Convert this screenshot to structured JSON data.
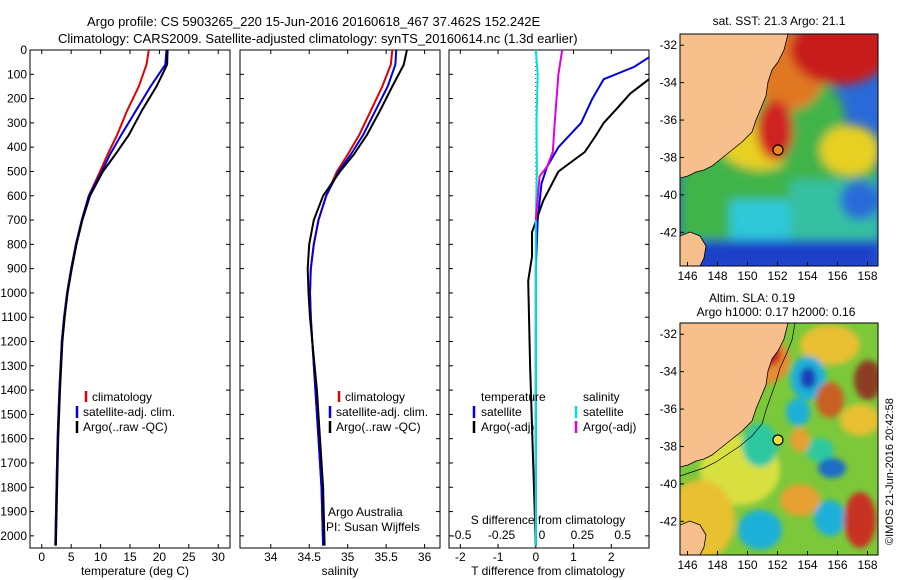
{
  "header": {
    "line1": "Argo profile: CS 5903265_220 15-Jun-2016 20160618_467 37.462S 152.242E",
    "line2": "Climatology: CARS2009. Satellite-adjusted climatology: synTS_20160614.nc (1.3d earlier)"
  },
  "chart_data": [
    {
      "type": "line",
      "xlabel": "temperature (deg C)",
      "ylabel": "",
      "xlim": [
        -2,
        32
      ],
      "ylim": [
        2050,
        0
      ],
      "xticks": [
        "0",
        "5",
        "10",
        "15",
        "20",
        "25",
        "30"
      ],
      "yticks": [
        "0",
        "100",
        "200",
        "300",
        "400",
        "500",
        "600",
        "700",
        "800",
        "900",
        "1000",
        "1100",
        "1200",
        "1300",
        "1400",
        "1500",
        "1600",
        "1700",
        "1800",
        "1900",
        "2000"
      ],
      "legend": [
        "climatology",
        "satellite-adj. clim.",
        "Argo(..raw -QC)"
      ],
      "series": [
        {
          "name": "climatology",
          "color": "#e00000",
          "x": [
            18.2,
            17.8,
            16.5,
            14.5,
            12.8,
            11.2,
            9.9,
            8.0,
            6.8,
            5.8,
            5.0,
            4.3,
            3.8,
            3.4,
            3.0,
            2.7,
            2.5,
            2.3
          ],
          "y": [
            0,
            60,
            150,
            250,
            350,
            430,
            500,
            600,
            700,
            800,
            900,
            1000,
            1100,
            1200,
            1400,
            1600,
            1800,
            2040
          ]
        },
        {
          "name": "satellite-adj. clim.",
          "color": "#0000e0",
          "x": [
            21.2,
            21.0,
            18.5,
            16.0,
            13.5,
            11.6,
            10.2,
            8.0,
            6.8,
            5.8,
            5.0,
            4.3,
            3.8,
            3.4,
            3.0,
            2.7,
            2.5,
            2.3
          ],
          "y": [
            0,
            60,
            150,
            250,
            350,
            430,
            500,
            600,
            700,
            800,
            900,
            1000,
            1100,
            1200,
            1400,
            1600,
            1800,
            2040
          ]
        },
        {
          "name": "Argo(..raw -QC)",
          "color": "#000000",
          "x": [
            21.4,
            21.3,
            19.5,
            17.0,
            14.8,
            12.5,
            10.4,
            8.2,
            6.9,
            5.9,
            5.1,
            4.4,
            3.9,
            3.5,
            3.1,
            2.8,
            2.6,
            2.4
          ],
          "y": [
            0,
            60,
            150,
            250,
            350,
            430,
            500,
            600,
            700,
            800,
            900,
            1000,
            1100,
            1200,
            1400,
            1600,
            1800,
            2040
          ]
        }
      ]
    },
    {
      "type": "line",
      "xlabel": "salinity",
      "xlim": [
        33.6,
        36.2
      ],
      "ylim": [
        2050,
        0
      ],
      "xticks": [
        "34",
        "34.5",
        "35",
        "35.5",
        "36"
      ],
      "legend": [
        "climatology",
        "satellite-adj. clim.",
        "Argo(..raw -QC)"
      ],
      "annotations": [
        "Argo Australia",
        "PI: Susan Wijffels"
      ],
      "series": [
        {
          "name": "climatology",
          "color": "#e00000",
          "x": [
            35.58,
            35.56,
            35.45,
            35.3,
            35.15,
            35.0,
            34.86,
            34.72,
            34.62,
            34.56,
            34.52,
            34.51,
            34.52,
            34.54,
            34.58,
            34.62,
            34.66,
            34.68
          ],
          "y": [
            0,
            60,
            150,
            250,
            350,
            430,
            500,
            600,
            700,
            800,
            900,
            1000,
            1100,
            1200,
            1400,
            1600,
            1800,
            2040
          ]
        },
        {
          "name": "satellite-adj. clim.",
          "color": "#0000e0",
          "x": [
            35.63,
            35.62,
            35.52,
            35.36,
            35.2,
            35.04,
            34.88,
            34.72,
            34.62,
            34.56,
            34.52,
            34.51,
            34.52,
            34.54,
            34.58,
            34.62,
            34.66,
            34.68
          ],
          "y": [
            0,
            60,
            150,
            250,
            350,
            430,
            500,
            600,
            700,
            800,
            900,
            1000,
            1100,
            1200,
            1400,
            1600,
            1800,
            2040
          ]
        },
        {
          "name": "Argo(..raw -QC)",
          "color": "#000000",
          "x": [
            35.77,
            35.73,
            35.58,
            35.42,
            35.25,
            35.08,
            34.9,
            34.68,
            34.56,
            34.5,
            34.48,
            34.49,
            34.51,
            34.54,
            34.6,
            34.64,
            34.68,
            34.7
          ],
          "y": [
            0,
            60,
            150,
            250,
            350,
            430,
            500,
            600,
            700,
            800,
            900,
            1000,
            1100,
            1200,
            1400,
            1600,
            1800,
            2040
          ]
        }
      ]
    },
    {
      "type": "line",
      "xlabel": "T difference from climatology",
      "xlabel2": "S difference from climatology",
      "xlim": [
        -2.3,
        3.0
      ],
      "ylim": [
        2050,
        0
      ],
      "xticks": [
        "-2",
        "-1",
        "0",
        "1",
        "2"
      ],
      "xticks_salinity": [
        "-0.5",
        "-0.25",
        "0",
        "0.25",
        "0.5"
      ],
      "legend_titles": [
        "temperature",
        "salinity"
      ],
      "legend": [
        "satellite",
        "Argo(-adj)",
        "satellite",
        "Argo(-adj)"
      ],
      "series": [
        {
          "name": "satellite",
          "color": "#0000e0",
          "x": [
            3.0,
            2.6,
            1.8,
            1.5,
            1.2,
            0.6,
            0.3,
            0.15,
            0.05,
            0.0,
            0.0,
            0.0
          ],
          "y": [
            30,
            70,
            120,
            200,
            300,
            400,
            480,
            550,
            700,
            900,
            1200,
            2040
          ]
        },
        {
          "name": "Argo(-adj)",
          "color": "#000000",
          "x": [
            3.0,
            2.5,
            2.1,
            1.8,
            1.6,
            1.3,
            0.6,
            0.2,
            -0.1,
            -0.1,
            -0.2,
            -0.15,
            0.0
          ],
          "y": [
            120,
            180,
            250,
            300,
            350,
            420,
            500,
            620,
            750,
            850,
            950,
            1300,
            2040
          ]
        },
        {
          "name": "satellite",
          "color": "#00e0e0",
          "x": [
            0.0,
            0.05,
            0.02,
            0.03,
            0.0,
            0.0,
            0.0
          ],
          "y": [
            0,
            100,
            300,
            500,
            700,
            1200,
            2040
          ]
        },
        {
          "name": "Argo(-adj)",
          "color": "#e000e0",
          "x": [
            0.7,
            0.6,
            0.5,
            0.45,
            0.3,
            0.1,
            0.0
          ],
          "y": [
            0,
            100,
            300,
            420,
            480,
            520,
            700
          ]
        }
      ]
    }
  ],
  "maps": {
    "sst": {
      "title": "sat. SST: 21.3  Argo: 21.1",
      "lon_ticks": [
        "146",
        "148",
        "150",
        "152",
        "154",
        "156",
        "158"
      ],
      "lat_ticks": [
        "-32",
        "-34",
        "-36",
        "-38",
        "-40",
        "-42"
      ],
      "marker": {
        "lon": 152.242,
        "lat": -37.462
      }
    },
    "sla": {
      "title_line1": "Altim. SLA: 0.19",
      "title_line2": "Argo h1000: 0.17  h2000: 0.16",
      "lon_ticks": [
        "146",
        "148",
        "150",
        "152",
        "154",
        "156",
        "158"
      ],
      "lat_ticks": [
        "-32",
        "-34",
        "-36",
        "-38",
        "-40",
        "-42"
      ],
      "marker": {
        "lon": 152.242,
        "lat": -37.462
      }
    }
  },
  "credit": "©IMOS 21-Jun-2016 20:42:58"
}
